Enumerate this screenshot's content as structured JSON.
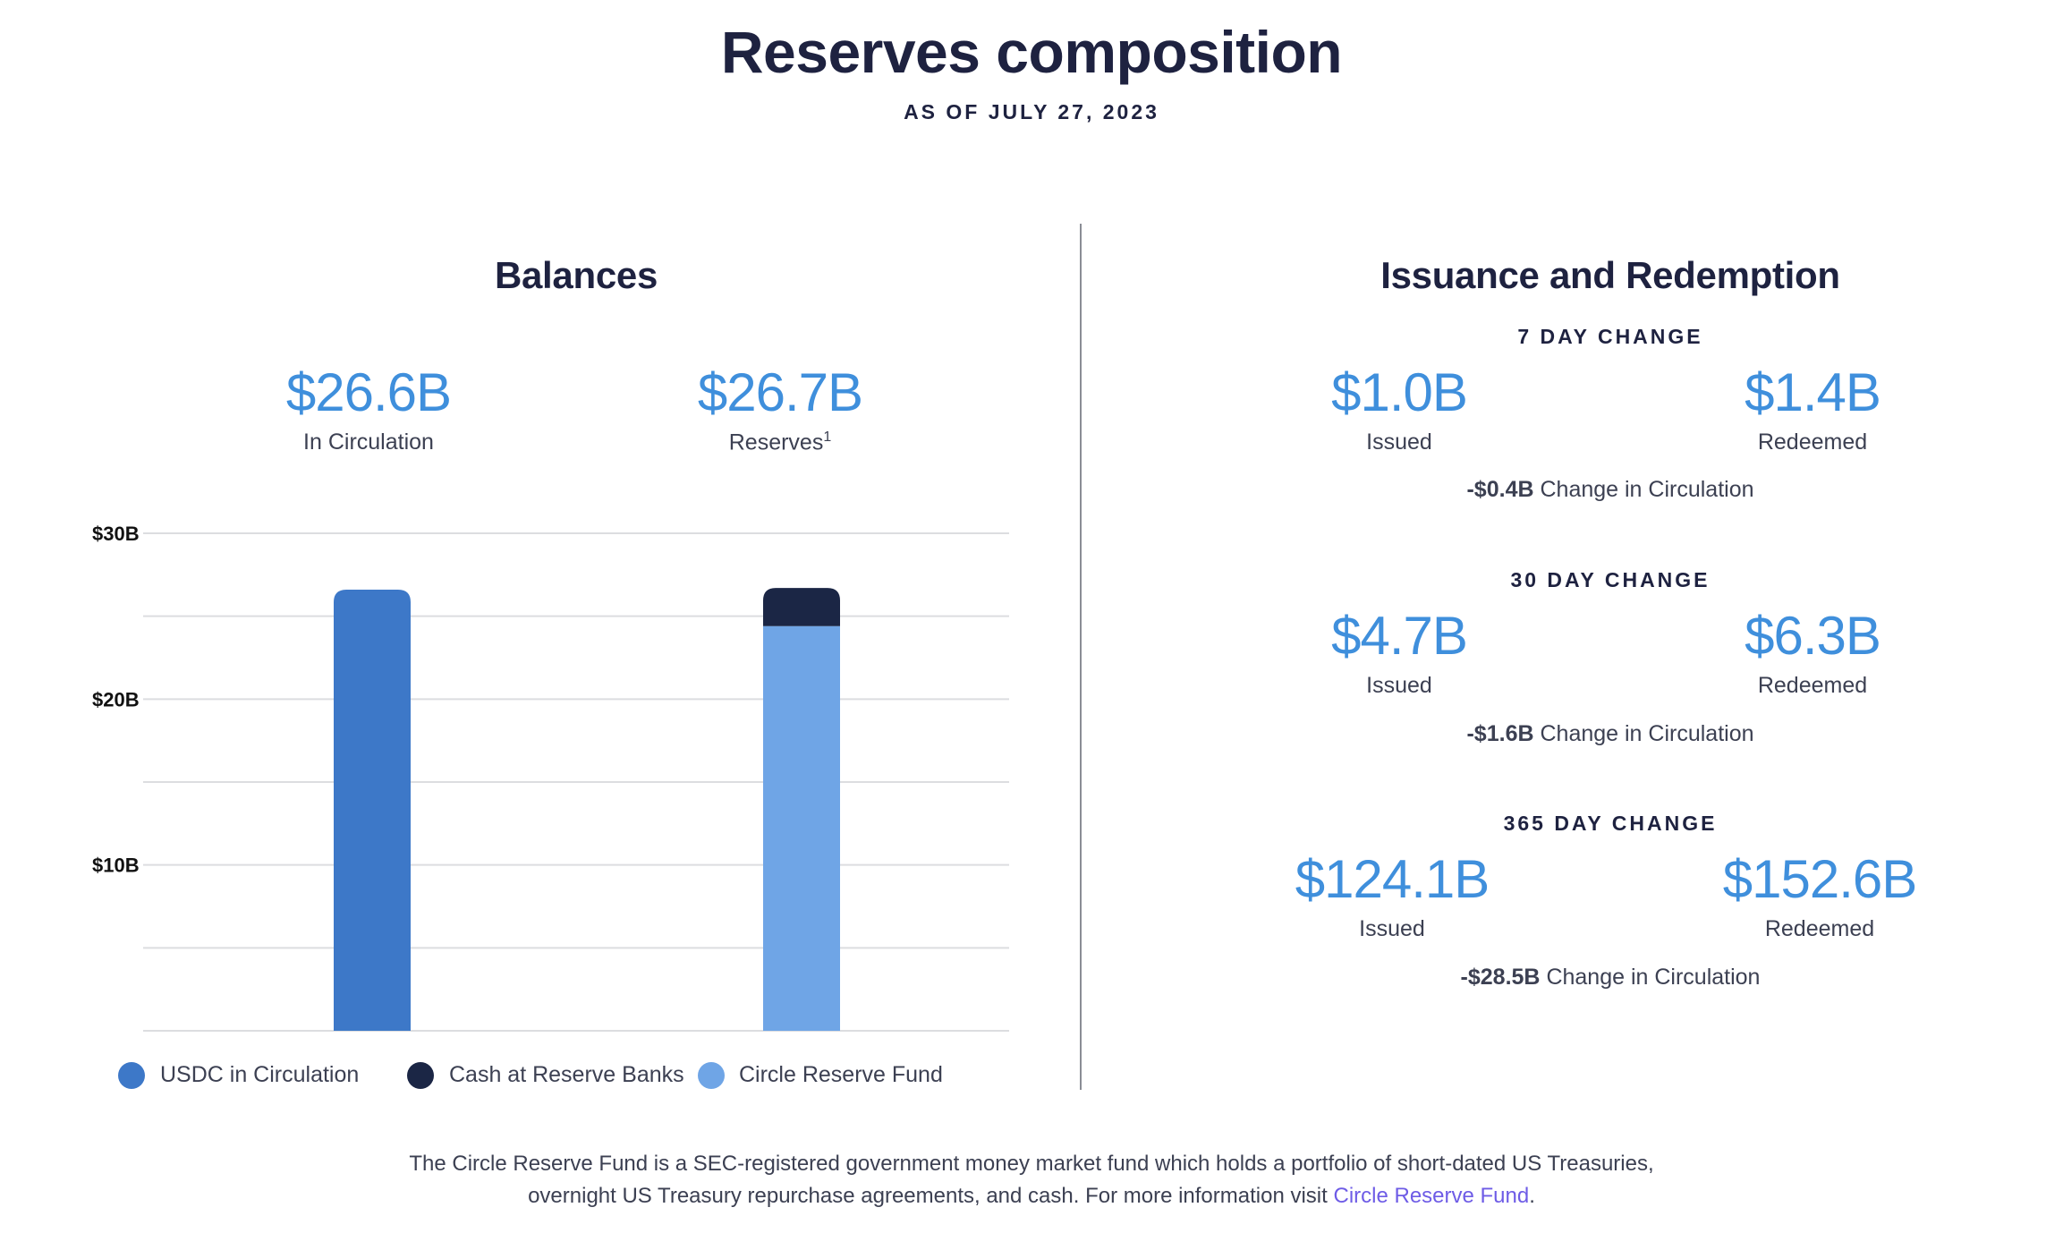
{
  "header": {
    "title": "Reserves composition",
    "as_of": "AS OF JULY 27, 2023"
  },
  "balances": {
    "title": "Balances",
    "circulation_value": "$26.6B",
    "circulation_label": "In Circulation",
    "reserves_value": "$26.7B",
    "reserves_label": "Reserves",
    "reserves_footnote_mark": "1"
  },
  "issuance": {
    "title": "Issuance and Redemption",
    "periods": [
      {
        "label": "7 DAY CHANGE",
        "issued_value": "$1.0B",
        "issued_label": "Issued",
        "redeemed_value": "$1.4B",
        "redeemed_label": "Redeemed",
        "change_value": "-$0.4B",
        "change_label": "Change in Circulation"
      },
      {
        "label": "30 DAY CHANGE",
        "issued_value": "$4.7B",
        "issued_label": "Issued",
        "redeemed_value": "$6.3B",
        "redeemed_label": "Redeemed",
        "change_value": "-$1.6B",
        "change_label": "Change in Circulation"
      },
      {
        "label": "365 DAY CHANGE",
        "issued_value": "$124.1B",
        "issued_label": "Issued",
        "redeemed_value": "$152.6B",
        "redeemed_label": "Redeemed",
        "change_value": "-$28.5B",
        "change_label": "Change in Circulation"
      }
    ]
  },
  "footnote": {
    "line1": "The Circle Reserve Fund is a SEC-registered government money market fund which holds a portfolio of short-dated US Treasuries,",
    "line2": "overnight US Treasury repurchase agreements, and cash. For more information visit ",
    "link_text": "Circle Reserve Fund",
    "line2_end": "."
  },
  "colors": {
    "usdc": "#3d78c8",
    "cash": "#1b2645",
    "fund": "#6fa5e6",
    "accent": "#3f8fdc"
  },
  "chart_data": {
    "type": "bar",
    "stacked": true,
    "categories": [
      "In Circulation",
      "Reserves"
    ],
    "series": [
      {
        "name": "USDC in Circulation",
        "color": "#3d78c8",
        "values": [
          26.6,
          0
        ]
      },
      {
        "name": "Circle Reserve Fund",
        "color": "#6fa5e6",
        "values": [
          0,
          24.4
        ]
      },
      {
        "name": "Cash at Reserve Banks",
        "color": "#1b2645",
        "values": [
          0,
          2.3
        ]
      }
    ],
    "ylim": [
      0,
      30
    ],
    "gridlines": [
      0,
      5,
      10,
      15,
      20,
      25,
      30
    ],
    "ytick_labels": [
      {
        "value": 10,
        "label": "$10B"
      },
      {
        "value": 20,
        "label": "$20B"
      },
      {
        "value": 30,
        "label": "$30B"
      }
    ],
    "legend": [
      "USDC in Circulation",
      "Cash at Reserve Banks",
      "Circle Reserve Fund"
    ],
    "legend_position": "bottom",
    "title": "",
    "xlabel": "",
    "ylabel": ""
  }
}
